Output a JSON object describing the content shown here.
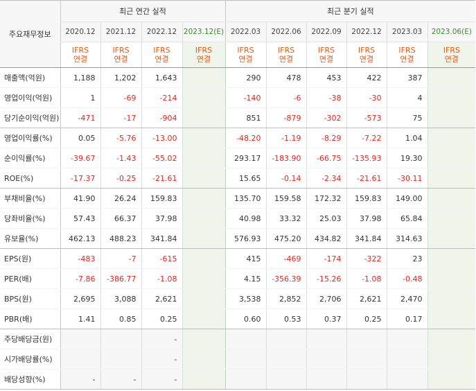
{
  "header": {
    "corner_label": "주요재무정보",
    "annual_group_label": "최근 연간 실적",
    "quarter_group_label": "최근 분기 실적",
    "annual_periods": [
      "2020.12",
      "2021.12",
      "2022.12",
      "2023.12(E)"
    ],
    "quarter_periods": [
      "2022.03",
      "2022.06",
      "2022.09",
      "2022.12",
      "2023.03",
      "2023.06(E)"
    ],
    "standard_line1": "IFRS",
    "standard_line2": "연결"
  },
  "rows": [
    {
      "label": "매출액(억원)",
      "values": [
        "1,188",
        "1,202",
        "1,643",
        "",
        "290",
        "478",
        "453",
        "422",
        "387",
        ""
      ]
    },
    {
      "label": "영업이익(억원)",
      "values": [
        "1",
        "-69",
        "-214",
        "",
        "-140",
        "-6",
        "-38",
        "-30",
        "4",
        ""
      ]
    },
    {
      "label": "당기순이익(억원)",
      "values": [
        "-471",
        "-17",
        "-904",
        "",
        "851",
        "-879",
        "-302",
        "-573",
        "75",
        ""
      ]
    },
    {
      "label": "영업이익률(%)",
      "values": [
        "0.05",
        "-5.76",
        "-13.00",
        "",
        "-48.20",
        "-1.19",
        "-8.29",
        "-7.22",
        "1.04",
        ""
      ]
    },
    {
      "label": "순이익률(%)",
      "values": [
        "-39.67",
        "-1.43",
        "-55.02",
        "",
        "293.17",
        "-183.90",
        "-66.75",
        "-135.93",
        "19.30",
        ""
      ]
    },
    {
      "label": "ROE(%)",
      "values": [
        "-17.37",
        "-0.25",
        "-21.61",
        "",
        "15.65",
        "-0.14",
        "-2.34",
        "-21.61",
        "-30.11",
        ""
      ]
    },
    {
      "label": "부채비율(%)",
      "values": [
        "41.90",
        "26.24",
        "159.83",
        "",
        "135.70",
        "159.58",
        "172.32",
        "159.83",
        "149.00",
        ""
      ]
    },
    {
      "label": "당좌비율(%)",
      "values": [
        "57.43",
        "66.37",
        "37.98",
        "",
        "40.98",
        "33.32",
        "25.03",
        "37.98",
        "65.84",
        ""
      ]
    },
    {
      "label": "유보율(%)",
      "values": [
        "462.13",
        "488.23",
        "341.84",
        "",
        "576.93",
        "475.20",
        "434.82",
        "341.84",
        "314.63",
        ""
      ]
    },
    {
      "label": "EPS(원)",
      "values": [
        "-483",
        "-7",
        "-615",
        "",
        "415",
        "-469",
        "-174",
        "-322",
        "23",
        ""
      ]
    },
    {
      "label": "PER(배)",
      "values": [
        "-7.86",
        "-386.77",
        "-1.08",
        "",
        "4.15",
        "-356.39",
        "-15.26",
        "-1.08",
        "-0.48",
        ""
      ]
    },
    {
      "label": "BPS(원)",
      "values": [
        "2,695",
        "3,088",
        "2,621",
        "",
        "3,538",
        "2,852",
        "2,706",
        "2,621",
        "2,470",
        ""
      ]
    },
    {
      "label": "PBR(배)",
      "values": [
        "1.41",
        "0.85",
        "0.25",
        "",
        "0.60",
        "0.53",
        "0.37",
        "0.25",
        "0.17",
        ""
      ]
    },
    {
      "label": "주당배당금(원)",
      "values": [
        "",
        "",
        "-",
        "",
        "",
        "",
        "",
        "",
        "",
        ""
      ]
    },
    {
      "label": "시가배당률(%)",
      "values": [
        "",
        "",
        "-",
        "",
        "",
        "",
        "",
        "",
        "",
        ""
      ]
    },
    {
      "label": "배당성향(%)",
      "values": [
        "-",
        "-",
        "-",
        "",
        "",
        "",
        "",
        "",
        "",
        ""
      ]
    }
  ],
  "colors": {
    "negative": "#e5241d",
    "standard": "#e35a12",
    "estimate_bg": "#f0f5ec",
    "estimate_text": "#3c8a2e"
  }
}
